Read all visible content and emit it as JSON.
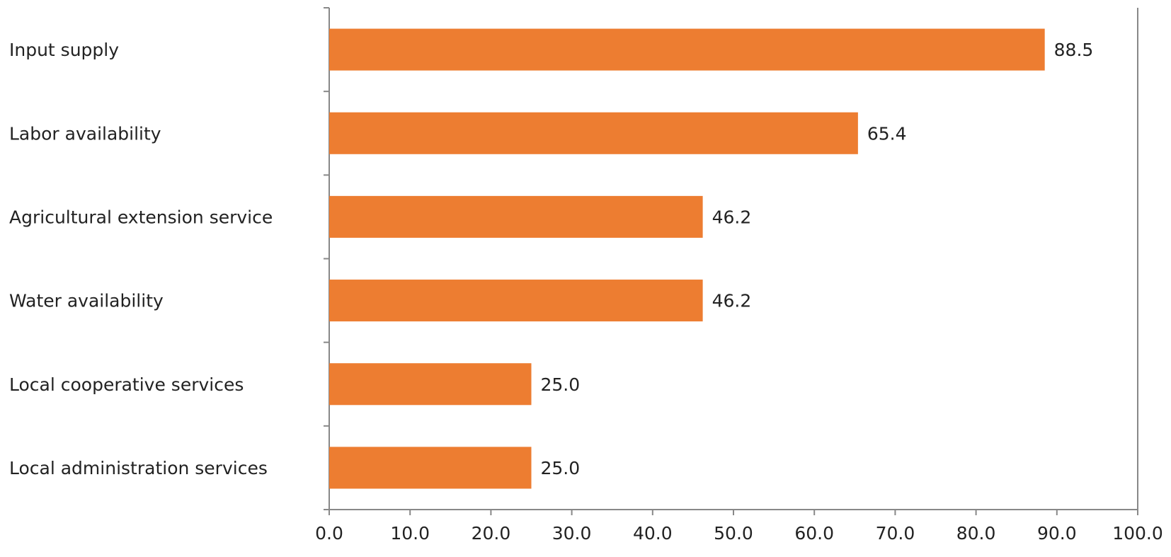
{
  "chart_data": {
    "type": "bar",
    "orientation": "horizontal",
    "categories": [
      "Input supply",
      "Labor availability",
      "Agricultural extension service",
      "Water availability",
      "Local cooperative services",
      "Local administration services"
    ],
    "values": [
      88.5,
      65.4,
      46.2,
      46.2,
      25.0,
      25.0
    ],
    "value_labels": [
      "88.5",
      "65.4",
      "46.2",
      "46.2",
      "25.0",
      "25.0"
    ],
    "color": "#ed7d31",
    "xlim": [
      0,
      100
    ],
    "xticks": [
      {
        "value": 0,
        "label": "0.0"
      },
      {
        "value": 10,
        "label": "10.0"
      },
      {
        "value": 20,
        "label": "20.0"
      },
      {
        "value": 30,
        "label": "30.0"
      },
      {
        "value": 40,
        "label": "40.0"
      },
      {
        "value": 50,
        "label": "50.0"
      },
      {
        "value": 60,
        "label": "60.0"
      },
      {
        "value": 70,
        "label": "70.0"
      },
      {
        "value": 80,
        "label": "80.0"
      },
      {
        "value": 90,
        "label": "90.0"
      },
      {
        "value": 100,
        "label": "100.0"
      }
    ],
    "grid": false
  }
}
